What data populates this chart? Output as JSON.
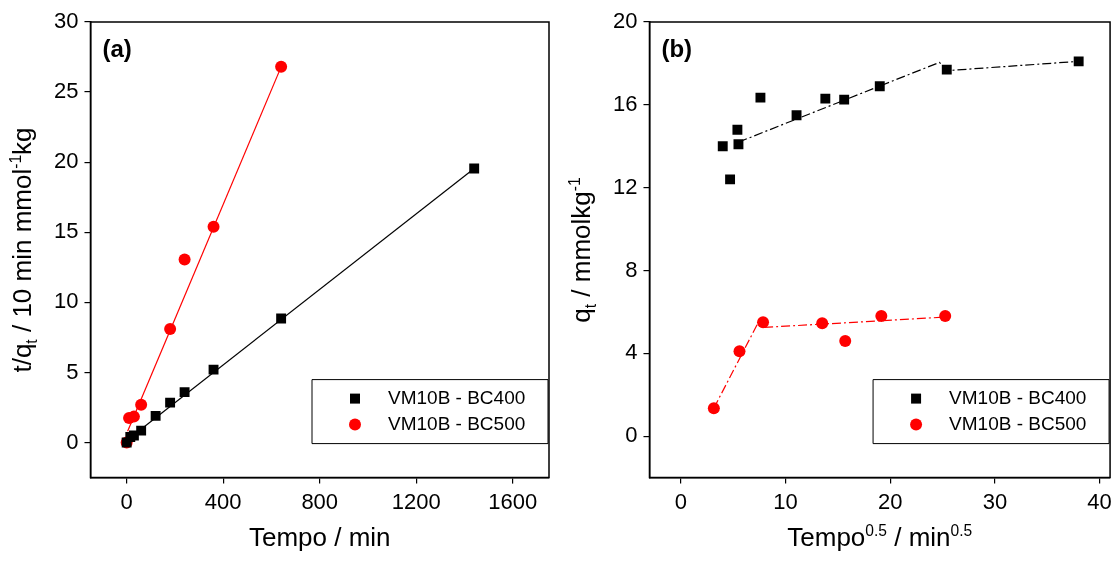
{
  "chart_data": [
    {
      "type": "scatter",
      "xlabel": "Tempo / min",
      "ylabel": "t/q$_{t}$ / 10 min mmol$^{-1}$kg",
      "annotations": [
        "(a)"
      ],
      "xlim": [
        -150,
        1750
      ],
      "xticks": [
        0,
        400,
        800,
        1200,
        1600
      ],
      "ylim": [
        -2.5,
        30
      ],
      "yticks": [
        0,
        5,
        10,
        15,
        20,
        25,
        30
      ],
      "grid": false,
      "legend": "bottom right",
      "series": [
        {
          "name": "VM10B - BC400",
          "color": "#000000",
          "type": "scatter",
          "marker": "square",
          "x": [
            0,
            15,
            30,
            60,
            120,
            180,
            240,
            360,
            640,
            1440
          ],
          "values": [
            0,
            0.4,
            0.5,
            0.85,
            1.9,
            2.85,
            3.6,
            5.2,
            8.85,
            19.55
          ]
        },
        {
          "name": "VM10B - BC500",
          "color": "#ff0000",
          "type": "scatter",
          "marker": "circle",
          "x": [
            0,
            10,
            30,
            60,
            180,
            240,
            360,
            640
          ],
          "values": [
            0,
            1.75,
            1.85,
            2.7,
            8.1,
            13.05,
            15.4,
            26.8
          ]
        },
        {
          "color": "#000000",
          "type": "line",
          "marker": "none",
          "line_style": "solid",
          "x": [
            0,
            1440
          ],
          "values": [
            0.15,
            19.55
          ]
        },
        {
          "color": "#ff0000",
          "type": "line",
          "marker": "none",
          "line_style": "solid",
          "x": [
            4,
            640
          ],
          "values": [
            0.8,
            26.8
          ]
        }
      ]
    },
    {
      "type": "scatter",
      "xlabel": "Tempo$^{0.5}$ / min$^{0.5}$",
      "ylabel": "q$_{t}$ / mmolkg$^{-1}$",
      "annotations": [
        "(b)"
      ],
      "xlim": [
        -3,
        41
      ],
      "xticks": [
        0,
        10,
        20,
        30,
        40
      ],
      "ylim": [
        -2,
        20
      ],
      "yticks": [
        0,
        4,
        8,
        12,
        16,
        20
      ],
      "grid": false,
      "legend": "bottom right",
      "series": [
        {
          "name": "VM10B - BC400",
          "color": "#000000",
          "type": "scatter",
          "marker": "square",
          "x": [
            4.0,
            4.7,
            5.4,
            5.5,
            7.6,
            11.05,
            13.8,
            15.6,
            19.0,
            25.4,
            38.0
          ],
          "values": [
            14.0,
            12.4,
            14.8,
            14.1,
            16.35,
            15.5,
            16.3,
            16.25,
            16.9,
            17.7,
            18.1
          ]
        },
        {
          "name": "VM10B - BC500",
          "color": "#ff0000",
          "type": "scatter",
          "marker": "circle",
          "x": [
            3.15,
            5.6,
            7.85,
            13.5,
            15.7,
            19.15,
            25.25
          ],
          "values": [
            1.35,
            4.1,
            5.5,
            5.45,
            4.6,
            5.8,
            5.8
          ]
        },
        {
          "color": "#000000",
          "type": "line",
          "marker": "none",
          "line_style": "dashed",
          "x": [
            5.5,
            24.7,
            25.4,
            38.0
          ],
          "values": [
            14.2,
            18.05,
            17.65,
            18.1
          ]
        },
        {
          "color": "#ff0000",
          "type": "line",
          "marker": "none",
          "line_style": "dashed",
          "x": [
            3.15,
            7.3,
            7.9,
            25.2
          ],
          "values": [
            1.35,
            5.4,
            5.25,
            5.75
          ]
        }
      ]
    }
  ]
}
